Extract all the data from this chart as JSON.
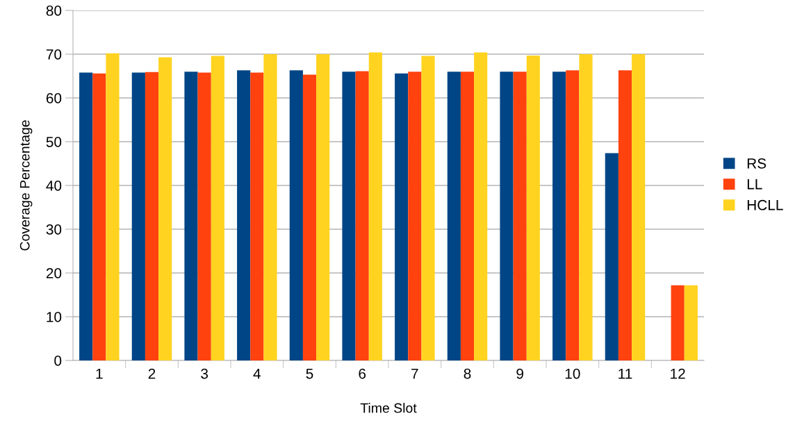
{
  "chart_data": {
    "type": "bar",
    "xlabel": "Time Slot",
    "ylabel": "Coverage Percentage",
    "categories": [
      "1",
      "2",
      "3",
      "4",
      "5",
      "6",
      "7",
      "8",
      "9",
      "10",
      "11",
      "12"
    ],
    "series": [
      {
        "name": "RS",
        "color": "#004586",
        "values": [
          65.8,
          65.8,
          66.0,
          66.3,
          66.3,
          66.0,
          65.6,
          66.0,
          66.0,
          66.0,
          47.4,
          0
        ]
      },
      {
        "name": "LL",
        "color": "#ff420e",
        "values": [
          65.6,
          65.9,
          65.8,
          65.8,
          65.3,
          66.1,
          66.0,
          66.0,
          66.0,
          66.3,
          66.3,
          17.2
        ]
      },
      {
        "name": "HCLL",
        "color": "#ffd320",
        "values": [
          70.2,
          69.3,
          69.6,
          70.0,
          70.0,
          70.4,
          69.6,
          70.4,
          69.7,
          70.0,
          70.0,
          17.2
        ]
      }
    ],
    "ylim": [
      0,
      80
    ],
    "yticks": [
      0,
      10,
      20,
      30,
      40,
      50,
      60,
      70,
      80
    ],
    "grid": "y",
    "legend": "right"
  }
}
